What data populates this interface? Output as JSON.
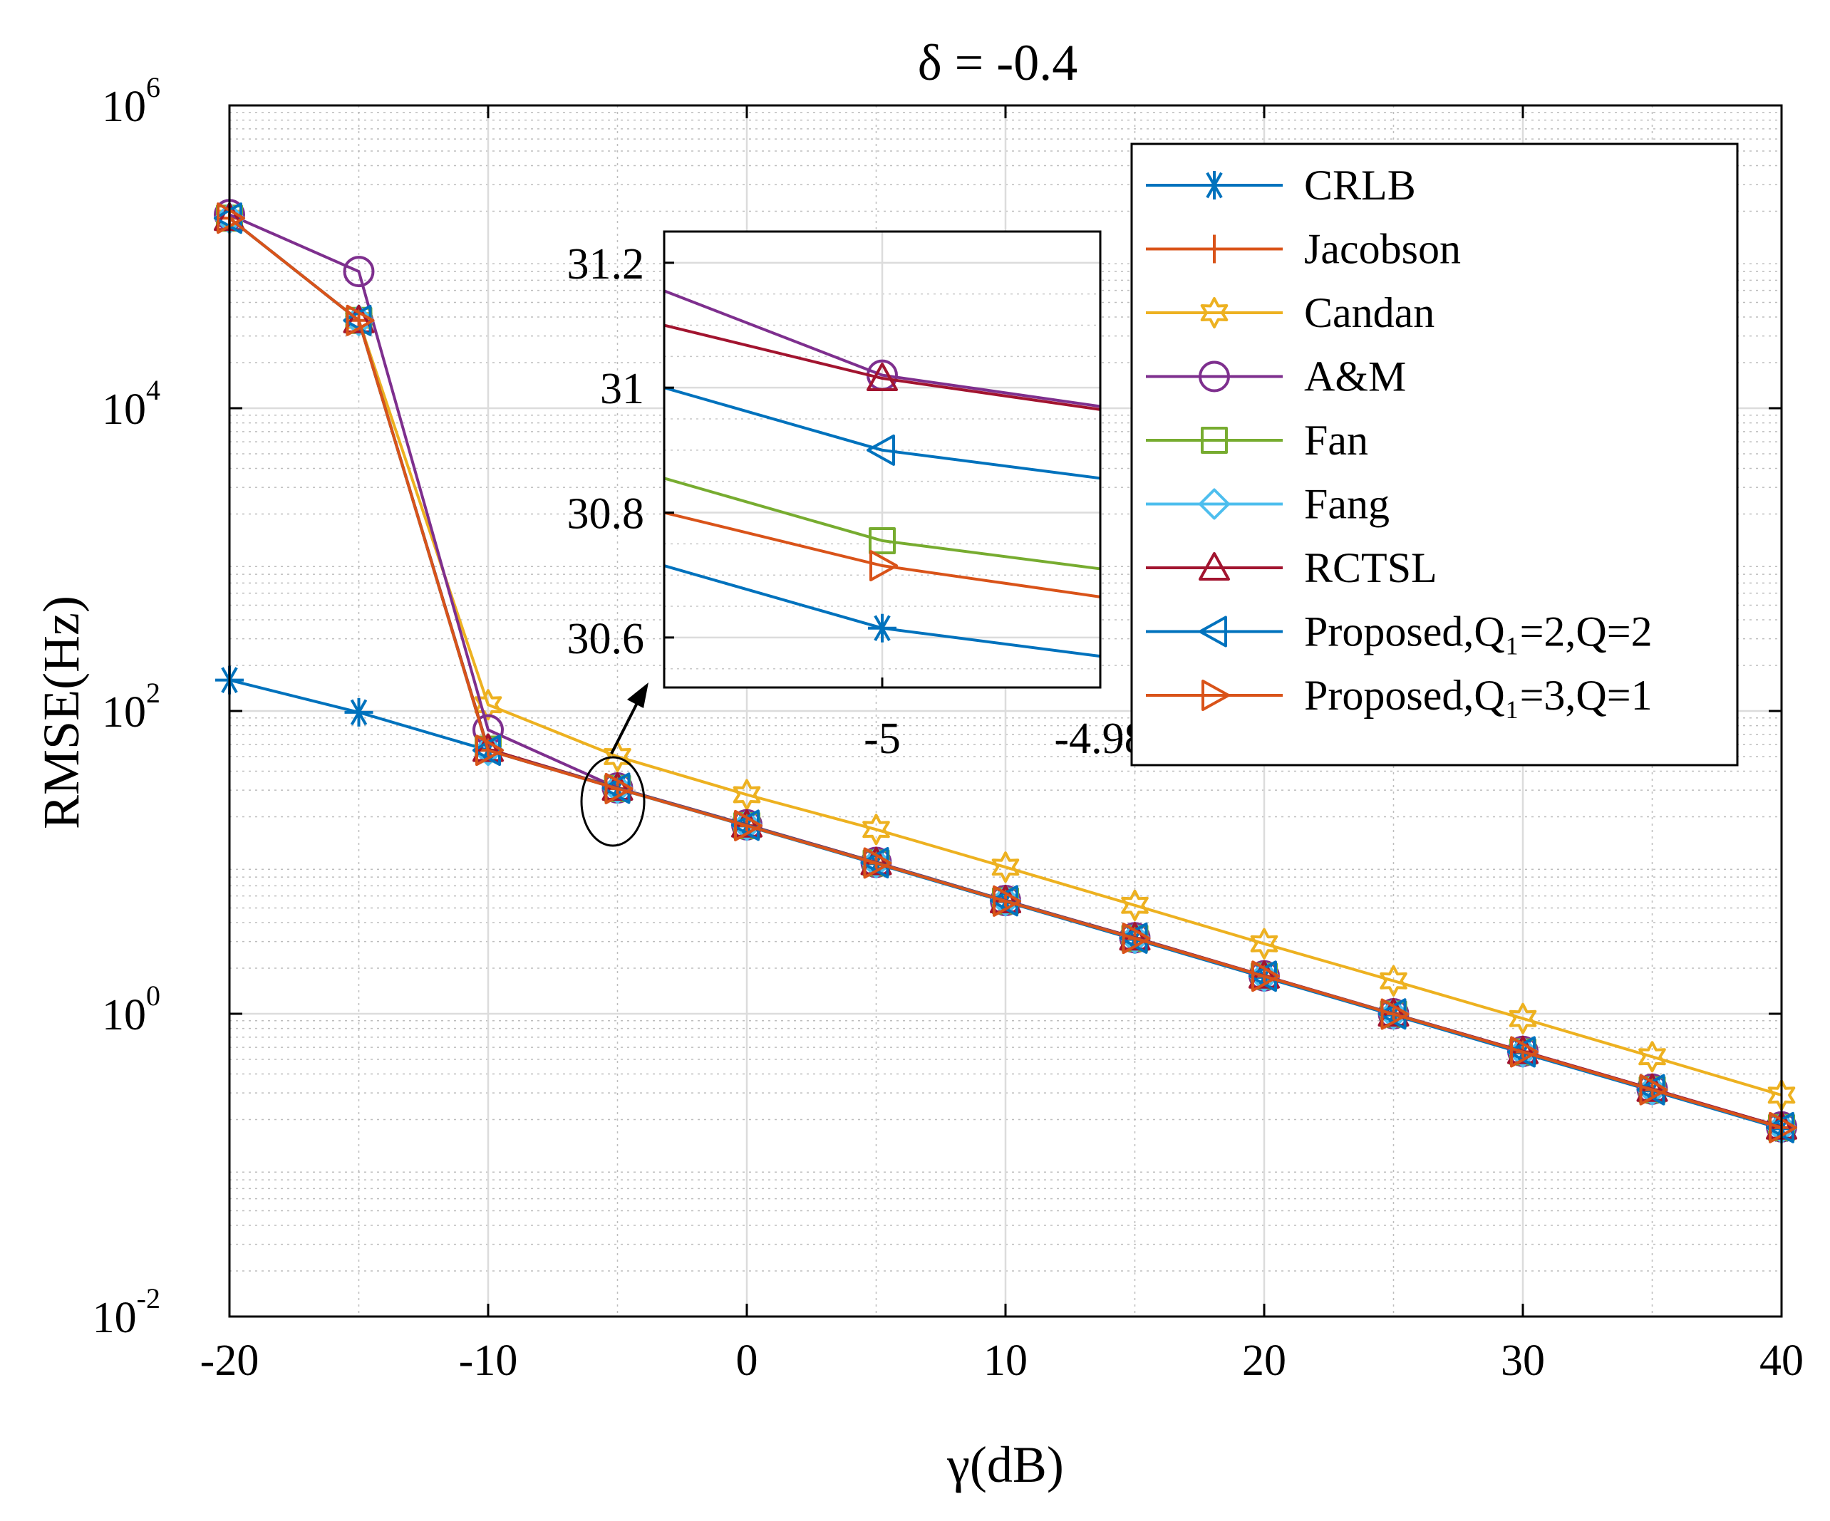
{
  "chart_data": {
    "type": "line",
    "title": "δ = -0.4",
    "xlabel": "γ(dB)",
    "ylabel": "RMSE(Hz)",
    "xlim": [
      -20,
      40
    ],
    "ylim": [
      0.01,
      1000000
    ],
    "yscale": "log",
    "grid": true,
    "minor_grid": true,
    "legend_position": "top-right",
    "x": [
      -20,
      -15,
      -10,
      -5,
      0,
      5,
      10,
      15,
      20,
      25,
      30,
      35,
      40
    ],
    "x_tick_labels": [
      "-20",
      "-10",
      "0",
      "10",
      "20",
      "30",
      "40"
    ],
    "y_tick_labels": [
      {
        "base": "10",
        "exp": "-2",
        "value": 0.01
      },
      {
        "base": "10",
        "exp": "0",
        "value": 1
      },
      {
        "base": "10",
        "exp": "2",
        "value": 100
      },
      {
        "base": "10",
        "exp": "4",
        "value": 10000
      },
      {
        "base": "10",
        "exp": "6",
        "value": 1000000
      }
    ],
    "series": [
      {
        "name": "CRLB",
        "color": "#0072BD",
        "marker": "asterisk",
        "values": [
          160,
          98,
          55,
          30.65,
          17.4,
          9.8,
          5.5,
          3.1,
          1.74,
          0.98,
          0.55,
          0.31,
          0.174
        ]
      },
      {
        "name": "Jacobson",
        "color": "#D95319",
        "marker": "plus",
        "values": [
          180000,
          38000,
          55,
          30.72,
          17.5,
          9.9,
          5.55,
          3.15,
          1.77,
          1.0,
          0.56,
          0.315,
          0.177
        ]
      },
      {
        "name": "Candan",
        "color": "#EDB120",
        "marker": "hexagram",
        "values": [
          180000,
          38000,
          110,
          50,
          28,
          16.5,
          9.3,
          5.2,
          2.9,
          1.65,
          0.93,
          0.52,
          0.29
        ]
      },
      {
        "name": "A&M",
        "color": "#7E2F8E",
        "marker": "circle",
        "values": [
          190000,
          80000,
          75,
          31.02,
          17.7,
          10.0,
          5.6,
          3.18,
          1.78,
          1.0,
          0.565,
          0.318,
          0.179
        ]
      },
      {
        "name": "Fan",
        "color": "#77AC30",
        "marker": "square",
        "values": [
          180000,
          38000,
          56,
          30.76,
          17.5,
          9.9,
          5.56,
          3.15,
          1.77,
          0.995,
          0.56,
          0.315,
          0.177
        ]
      },
      {
        "name": "Fang",
        "color": "#4DBEEE",
        "marker": "diamond",
        "values": [
          180000,
          38000,
          55,
          30.9,
          17.6,
          9.95,
          5.58,
          3.16,
          1.77,
          0.997,
          0.56,
          0.315,
          0.177
        ]
      },
      {
        "name": "RCTSL",
        "color": "#A2142F",
        "marker": "triangle-up",
        "values": [
          180000,
          38000,
          56,
          31.02,
          17.7,
          10.0,
          5.6,
          3.18,
          1.78,
          1.0,
          0.565,
          0.318,
          0.179
        ]
      },
      {
        "name": "Proposed,Q₁=2,Q=2",
        "color": "#0072BD",
        "marker": "triangle-left",
        "values": [
          180000,
          38000,
          55,
          30.9,
          17.6,
          9.95,
          5.58,
          3.16,
          1.77,
          0.997,
          0.56,
          0.315,
          0.177
        ]
      },
      {
        "name": "Proposed,Q₁=3,Q=1",
        "color": "#D95319",
        "marker": "triangle-right",
        "values": [
          180000,
          38000,
          55,
          30.72,
          17.5,
          9.9,
          5.55,
          3.15,
          1.77,
          0.995,
          0.56,
          0.315,
          0.177
        ]
      }
    ],
    "inset": {
      "xlim": [
        -5.02,
        -4.98
      ],
      "ylim": [
        30.52,
        31.25
      ],
      "x_tick_labels": [
        "-5",
        "-4.98"
      ],
      "y_tick_labels": [
        "30.6",
        "30.8",
        "31",
        "31.2"
      ],
      "lines": [
        {
          "series": "A&M",
          "color": "#7E2F8E",
          "y_left": 31.155,
          "y_at_mark": 31.02,
          "y_right": 30.97
        },
        {
          "series": "RCTSL",
          "color": "#A2142F",
          "y_left": 31.1,
          "y_at_mark": 31.015,
          "y_right": 30.965
        },
        {
          "series": "Proposed,Q₁=2,Q=2",
          "color": "#0072BD",
          "y_left": 31.0,
          "y_at_mark": 30.9,
          "y_right": 30.855
        },
        {
          "series": "Fan",
          "color": "#77AC30",
          "y_left": 30.855,
          "y_at_mark": 30.755,
          "y_right": 30.71
        },
        {
          "series": "Proposed,Q₁=3,Q=1",
          "color": "#D95319",
          "y_left": 30.8,
          "y_at_mark": 30.715,
          "y_right": 30.665
        },
        {
          "series": "CRLB",
          "color": "#0072BD",
          "y_left": 30.715,
          "y_at_mark": 30.615,
          "y_right": 30.57
        }
      ]
    }
  }
}
